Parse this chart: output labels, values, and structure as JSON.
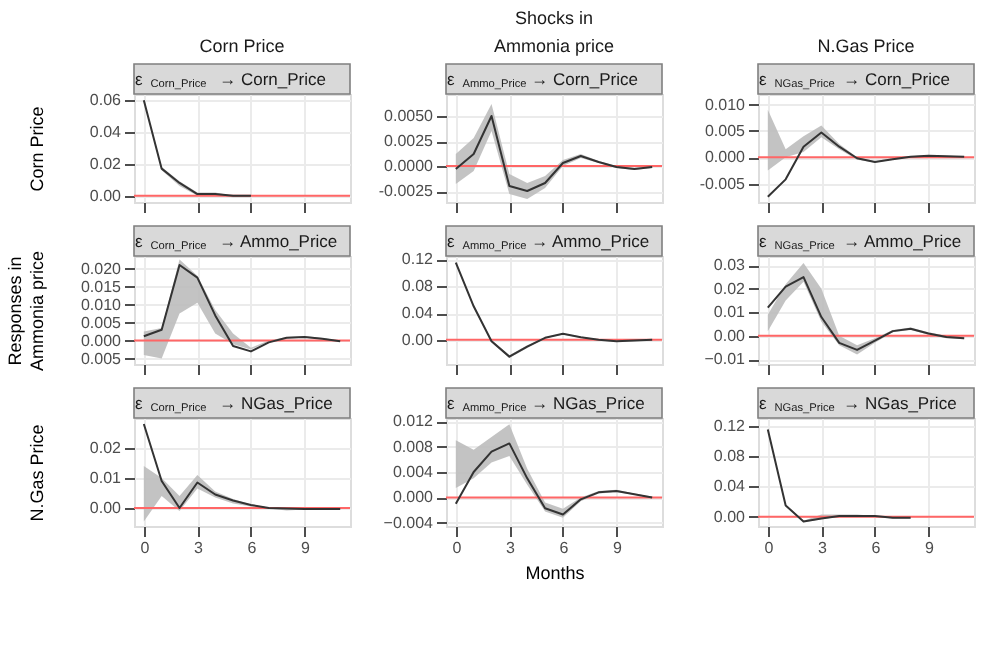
{
  "chart_data": [
    {
      "type": "line",
      "title": "Corn Price",
      "subtitle": "ε$_{Corn_Price}$ → Corn_Price",
      "ylabel": "Corn Price",
      "tick_labels": "y",
      "grid": true,
      "x": [
        0,
        1,
        2,
        3,
        4,
        5,
        6
      ],
      "xlim": [
        -0.55,
        11.55
      ],
      "xticks": [
        0,
        3,
        6,
        9
      ],
      "ylim": [
        -0.004,
        0.064
      ],
      "yticks": [
        {
          "value": 0,
          "label": "0.00"
        },
        0.02,
        0.04,
        0.06
      ],
      "ref_lines": [
        {
          "axis": "y",
          "value": 0,
          "color": "#ff6666"
        }
      ],
      "series": [
        {
          "color": "#333333",
          "values": [
            0.06,
            0.017,
            0.008,
            0.001,
            0.001,
            0.0,
            0.0
          ],
          "lower": [
            0.06,
            0.016,
            0.006,
            0.0,
            0.0,
            -0.001,
            -0.001
          ],
          "upper": [
            0.06,
            0.018,
            0.009,
            0.002,
            0.002,
            0.0,
            0.0
          ]
        }
      ]
    },
    {
      "type": "line",
      "title": "Ammonia price",
      "subtitle": "ε$_{Ammo_Price}$ → Corn_Price",
      "annotations": [
        "Shocks in"
      ],
      "tick_labels": "y",
      "grid": true,
      "x": [
        0,
        1,
        2,
        3,
        4,
        5,
        6,
        7,
        8,
        9,
        10,
        11
      ],
      "xlim": [
        -0.55,
        11.55
      ],
      "xticks": [
        0,
        3,
        6,
        9
      ],
      "ylim": [
        -0.0036,
        0.0072
      ],
      "yticks": [
        {
          "value": -0.0025,
          "label": "-0.0025"
        },
        {
          "value": 0,
          "label": "0.0000"
        },
        {
          "value": 0.0025,
          "label": "0.0025"
        },
        {
          "value": 0.005,
          "label": "0.0050"
        }
      ],
      "ref_lines": [
        {
          "axis": "y",
          "value": 0,
          "color": "#ff6666"
        }
      ],
      "series": [
        {
          "color": "#333333",
          "values": [
            -0.0003,
            0.0012,
            0.005,
            -0.002,
            -0.0025,
            -0.0017,
            0.0003,
            0.001,
            0.0004,
            -0.0001,
            -0.0003,
            -0.0001
          ],
          "lower": [
            -0.0018,
            -0.0005,
            0.0035,
            -0.0028,
            -0.0033,
            -0.0022,
            0.0,
            0.0008,
            0.0003,
            -0.0002,
            -0.0004,
            -0.0002
          ],
          "upper": [
            0.0012,
            0.0028,
            0.0062,
            -0.0008,
            -0.0017,
            -0.001,
            0.0006,
            0.0012,
            0.0005,
            0.0,
            -0.0002,
            -0.0001
          ]
        }
      ]
    },
    {
      "type": "line",
      "title": "N.Gas Price",
      "subtitle": "ε$_{NGas_Price}$ → Corn_Price",
      "tick_labels": "y",
      "grid": true,
      "x": [
        0,
        1,
        2,
        3,
        4,
        5,
        6,
        7,
        8,
        9,
        10,
        11
      ],
      "xlim": [
        -0.55,
        11.55
      ],
      "xticks": [
        0,
        3,
        6,
        9
      ],
      "ylim": [
        -0.0085,
        0.012
      ],
      "yticks": [
        {
          "value": -0.005,
          "label": "-0.005"
        },
        {
          "value": 0,
          "label": "0.000"
        },
        0.005,
        {
          "value": 0.01,
          "label": "0.010"
        }
      ],
      "ref_lines": [
        {
          "axis": "y",
          "value": 0,
          "color": "#ff6666"
        }
      ],
      "series": [
        {
          "color": "#333333",
          "values": [
            -0.0075,
            -0.0042,
            0.002,
            0.0047,
            0.002,
            -0.0002,
            -0.0009,
            -0.0004,
            0.0001,
            0.0003,
            0.0002,
            0.0001
          ],
          "lower": [
            -0.0025,
            0.0,
            0.001,
            0.0038,
            0.0015,
            -0.0005,
            -0.001,
            -0.0005,
            0.0,
            0.0002,
            0.0001,
            0.0
          ],
          "upper": [
            0.009,
            0.0015,
            0.004,
            0.006,
            0.0025,
            0.0,
            -0.0007,
            -0.0002,
            0.0002,
            0.0004,
            0.0003,
            0.0002
          ]
        }
      ]
    },
    {
      "type": "line",
      "subtitle": "ε$_{Corn_Price}$ → Ammo_Price",
      "ylabel": "Responses in Ammonia price",
      "tick_labels": "y",
      "grid": true,
      "x": [
        0,
        1,
        2,
        3,
        4,
        5,
        6,
        7,
        8,
        9,
        10,
        11
      ],
      "xlim": [
        -0.55,
        11.55
      ],
      "xticks": [
        0,
        3,
        6,
        9
      ],
      "ylim": [
        -0.0065,
        0.0235
      ],
      "yticks": [
        {
          "value": -0.005,
          "label": "0.005"
        },
        {
          "value": 0,
          "label": "0.000"
        },
        0.005,
        {
          "value": 0.01,
          "label": "0.010"
        },
        0.015,
        {
          "value": 0.02,
          "label": "0.020"
        }
      ],
      "ref_lines": [
        {
          "axis": "y",
          "value": 0,
          "color": "#ff6666"
        }
      ],
      "series": [
        {
          "color": "#333333",
          "values": [
            0.0012,
            0.003,
            0.021,
            0.0175,
            0.007,
            -0.0015,
            -0.003,
            -0.0005,
            0.0008,
            0.001,
            0.0005,
            -0.0002
          ],
          "lower": [
            -0.004,
            -0.005,
            0.0075,
            0.0105,
            0.002,
            -0.001,
            -0.0025,
            -0.0003,
            0.0006,
            0.0008,
            0.0004,
            -0.0003
          ],
          "upper": [
            0.0025,
            0.0035,
            0.0225,
            0.018,
            0.0085,
            0.002,
            -0.002,
            0.0,
            0.001,
            0.0013,
            0.0007,
            0.0
          ]
        }
      ]
    },
    {
      "type": "line",
      "subtitle": "ε$_{Ammo_Price}$ → Ammo_Price",
      "tick_labels": "y",
      "grid": true,
      "x": [
        0,
        1,
        2,
        3,
        4,
        5,
        6,
        7,
        8,
        9,
        10,
        11
      ],
      "xlim": [
        -0.55,
        11.55
      ],
      "xticks": [
        0,
        3,
        6,
        9
      ],
      "ylim": [
        -0.036,
        0.125
      ],
      "yticks": [
        {
          "value": 0,
          "label": "0.00"
        },
        0.04,
        0.08,
        0.12
      ],
      "ref_lines": [
        {
          "axis": "y",
          "value": 0,
          "color": "#ff6666"
        }
      ],
      "series": [
        {
          "color": "#333333",
          "values": [
            0.115,
            0.05,
            -0.002,
            -0.025,
            -0.01,
            0.003,
            0.009,
            0.004,
            0.0,
            -0.002,
            -0.001,
            0.0
          ],
          "lower": [
            0.114,
            0.048,
            -0.004,
            -0.027,
            -0.012,
            0.002,
            0.008,
            0.003,
            -0.001,
            -0.003,
            -0.002,
            -0.001
          ],
          "upper": [
            0.116,
            0.052,
            0.0,
            -0.023,
            -0.008,
            0.004,
            0.01,
            0.005,
            0.001,
            -0.001,
            0.0,
            0.001
          ]
        }
      ]
    },
    {
      "type": "line",
      "subtitle": "ε$_{NGas_Price}$ → Ammo_Price",
      "tick_labels": "y",
      "grid": true,
      "x": [
        0,
        1,
        2,
        3,
        4,
        5,
        6,
        7,
        8,
        9,
        10,
        11
      ],
      "xlim": [
        -0.55,
        11.55
      ],
      "xticks": [
        0,
        3,
        6,
        9
      ],
      "ylim": [
        -0.012,
        0.034
      ],
      "yticks": [
        -0.01,
        {
          "value": 0,
          "label": "0.00"
        },
        0.01,
        0.02,
        0.03
      ],
      "ref_lines": [
        {
          "axis": "y",
          "value": 0,
          "color": "#ff6666"
        }
      ],
      "series": [
        {
          "color": "#333333",
          "values": [
            0.012,
            0.021,
            0.025,
            0.008,
            -0.003,
            -0.006,
            -0.002,
            0.002,
            0.003,
            0.001,
            -0.0005,
            -0.001
          ],
          "lower": [
            0.002,
            0.015,
            0.023,
            0.006,
            -0.004,
            -0.008,
            -0.003,
            0.0015,
            0.0025,
            0.0005,
            -0.001,
            -0.0015
          ],
          "upper": [
            0.009,
            0.022,
            0.031,
            0.02,
            0.0,
            -0.004,
            -0.001,
            0.0025,
            0.0035,
            0.0015,
            0.0,
            -0.0005
          ]
        }
      ]
    },
    {
      "type": "line",
      "subtitle": "ε$_{Corn_Price}$ → NGas_Price",
      "ylabel": "N.Gas Price",
      "grid": true,
      "x": [
        0,
        1,
        2,
        3,
        4,
        5,
        6,
        7,
        8,
        9,
        10,
        11
      ],
      "xlim": [
        -0.55,
        11.55
      ],
      "xticks": [
        0,
        3,
        6,
        9
      ],
      "ylim": [
        -0.006,
        0.03
      ],
      "yticks": [
        {
          "value": 0,
          "label": "0.00"
        },
        0.01,
        0.02
      ],
      "ref_lines": [
        {
          "axis": "y",
          "value": 0,
          "color": "#ff6666"
        }
      ],
      "series": [
        {
          "color": "#333333",
          "values": [
            0.028,
            0.009,
            0.0,
            0.0085,
            0.0045,
            0.0025,
            0.001,
            0.0,
            -0.0002,
            -0.0003,
            -0.0003,
            -0.0003
          ],
          "lower": [
            -0.0045,
            0.004,
            -0.001,
            0.0065,
            0.0035,
            0.0015,
            0.0005,
            -0.0002,
            -0.0008,
            -0.0005,
            -0.0004,
            -0.0004
          ],
          "upper": [
            0.014,
            0.01,
            0.004,
            0.011,
            0.0055,
            0.003,
            0.0012,
            0.0002,
            0.0,
            -0.0001,
            -0.0002,
            -0.0002
          ]
        }
      ]
    },
    {
      "type": "line",
      "subtitle": "ε$_{Ammo_Price}$ → NGas_Price",
      "xlabel": "Months",
      "grid": true,
      "x": [
        0,
        1,
        2,
        3,
        4,
        5,
        6,
        7,
        8,
        9,
        10,
        11
      ],
      "xlim": [
        -0.55,
        11.55
      ],
      "xticks": [
        0,
        3,
        6,
        9
      ],
      "ylim": [
        -0.0045,
        0.0125
      ],
      "yticks": [
        -0.004,
        {
          "value": 0,
          "label": "0.000"
        },
        0.004,
        0.008,
        0.012
      ],
      "ref_lines": [
        {
          "axis": "y",
          "value": 0,
          "color": "#ff6666"
        }
      ],
      "series": [
        {
          "color": "#333333",
          "values": [
            -0.001,
            0.004,
            0.0072,
            0.0085,
            0.003,
            -0.0017,
            -0.0027,
            -0.0003,
            0.0008,
            0.001,
            0.0005,
            0.0
          ],
          "lower": [
            0.0015,
            0.003,
            0.0055,
            0.0065,
            0.002,
            -0.0022,
            -0.0032,
            -0.0006,
            0.0006,
            0.0008,
            0.0004,
            -0.0001
          ],
          "upper": [
            0.009,
            0.0075,
            0.0095,
            0.0115,
            0.0045,
            -0.0008,
            -0.0018,
            0.0,
            0.001,
            0.0012,
            0.0006,
            0.0001
          ]
        }
      ]
    },
    {
      "type": "line",
      "subtitle": "ε$_{NGas_Price}$ → NGas_Price",
      "grid": true,
      "x": [
        0,
        1,
        2,
        3,
        4,
        5,
        6,
        7,
        8
      ],
      "xlim": [
        -0.55,
        11.55
      ],
      "xticks": [
        0,
        3,
        6,
        9
      ],
      "ylim": [
        -0.012,
        0.13
      ],
      "yticks": [
        {
          "value": 0,
          "label": "0.00"
        },
        0.04,
        0.08,
        0.12
      ],
      "ref_lines": [
        {
          "axis": "y",
          "value": 0,
          "color": "#ff6666"
        }
      ],
      "series": [
        {
          "color": "#333333",
          "values": [
            0.115,
            0.015,
            -0.006,
            -0.002,
            0.001,
            0.001,
            0.001,
            -0.001,
            -0.001
          ],
          "lower": [
            0.114,
            0.014,
            -0.007,
            -0.003,
            0.0,
            0.0,
            0.0,
            -0.002,
            -0.002
          ],
          "upper": [
            0.116,
            0.016,
            -0.005,
            0.003,
            0.003,
            0.003,
            0.001,
            0.0,
            0.0
          ]
        }
      ]
    }
  ]
}
